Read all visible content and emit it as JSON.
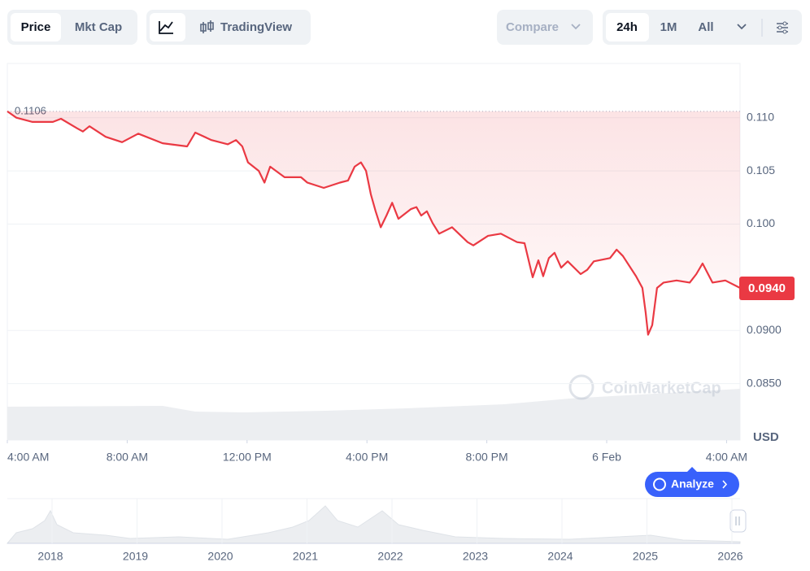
{
  "toolbar": {
    "view_tabs": [
      "Price",
      "Mkt Cap"
    ],
    "chart_tools": [
      "TradingView"
    ],
    "compare": "Compare",
    "ranges": [
      "24h",
      "1M",
      "All"
    ]
  },
  "chart_data": {
    "type": "line",
    "x": [
      0,
      0.3,
      0.84,
      1.52,
      1.79,
      2.33,
      2.52,
      2.74,
      3.28,
      3.83,
      4.37,
      5.18,
      6.0,
      6.27,
      6.81,
      7.36,
      7.63,
      7.84,
      8.03,
      8.39,
      8.58,
      8.77,
      9.25,
      9.8,
      10.01,
      10.56,
      11.1,
      11.37,
      11.59,
      11.8,
      11.97,
      12.13,
      12.29,
      12.46,
      12.65,
      12.84,
      13.05,
      13.46,
      13.65,
      13.81,
      14.0,
      14.19,
      14.41,
      14.84,
      15.36,
      15.55,
      16.04,
      16.47,
      17.01,
      17.26,
      17.53,
      17.72,
      17.88,
      18.07,
      18.26,
      18.48,
      18.7,
      19.13,
      19.35,
      19.57,
      20.11,
      20.33,
      20.54,
      20.98,
      21.19,
      21.3,
      21.38,
      21.52,
      21.68,
      21.9,
      22.33,
      22.77,
      22.99,
      23.2,
      23.53,
      23.96,
      24.45
    ],
    "series": [
      {
        "name": "Price",
        "color": "#ea3943",
        "values": [
          0.1106,
          0.11,
          0.1096,
          0.1096,
          0.1099,
          0.109,
          0.1087,
          0.1092,
          0.1082,
          0.1077,
          0.1085,
          0.1076,
          0.1073,
          0.1086,
          0.1079,
          0.1075,
          0.1079,
          0.1073,
          0.1058,
          0.105,
          0.1039,
          0.1054,
          0.1044,
          0.1044,
          0.1039,
          0.1034,
          0.1039,
          0.1041,
          0.1054,
          0.1058,
          0.105,
          0.1028,
          0.1012,
          0.0997,
          0.1008,
          0.102,
          0.1005,
          0.1014,
          0.1016,
          0.1008,
          0.1012,
          0.1001,
          0.0991,
          0.0997,
          0.0983,
          0.098,
          0.0989,
          0.0991,
          0.0983,
          0.0982,
          0.095,
          0.0966,
          0.0951,
          0.0968,
          0.0973,
          0.0959,
          0.0965,
          0.0953,
          0.0957,
          0.0965,
          0.0968,
          0.0976,
          0.097,
          0.0951,
          0.094,
          0.0917,
          0.0896,
          0.0905,
          0.094,
          0.0945,
          0.0947,
          0.0945,
          0.0953,
          0.0963,
          0.0945,
          0.0947,
          0.094
        ]
      }
    ],
    "open_price": 0.1106,
    "current_price": {
      "value": 0.094,
      "label": "0.0940"
    },
    "xlim": [
      0,
      24.45
    ],
    "xticks": [
      {
        "value": 0,
        "label": "4:00 AM"
      },
      {
        "value": 4,
        "label": "8:00 AM"
      },
      {
        "value": 8,
        "label": "12:00 PM"
      },
      {
        "value": 12,
        "label": "4:00 PM"
      },
      {
        "value": 16,
        "label": "8:00 PM"
      },
      {
        "value": 20,
        "label": "6 Feb"
      },
      {
        "value": 24,
        "label": "4:00 AM"
      }
    ],
    "ylim": [
      0.0797,
      0.1151
    ],
    "yticks": [
      {
        "value": 0.085,
        "label": "0.0850"
      },
      {
        "value": 0.09,
        "label": "0.0900"
      },
      {
        "value": 0.1,
        "label": "0.100"
      },
      0.105,
      {
        "value": 0.11,
        "label": "0.110"
      }
    ],
    "y_unit": "USD",
    "grid": true,
    "watermark": "CoinMarketCap"
  },
  "analyze_button": "Analyze",
  "navigator": {
    "years": [
      "2018",
      "2019",
      "2020",
      "2021",
      "2022",
      "2023",
      "2024",
      "2025",
      "2026"
    ]
  }
}
